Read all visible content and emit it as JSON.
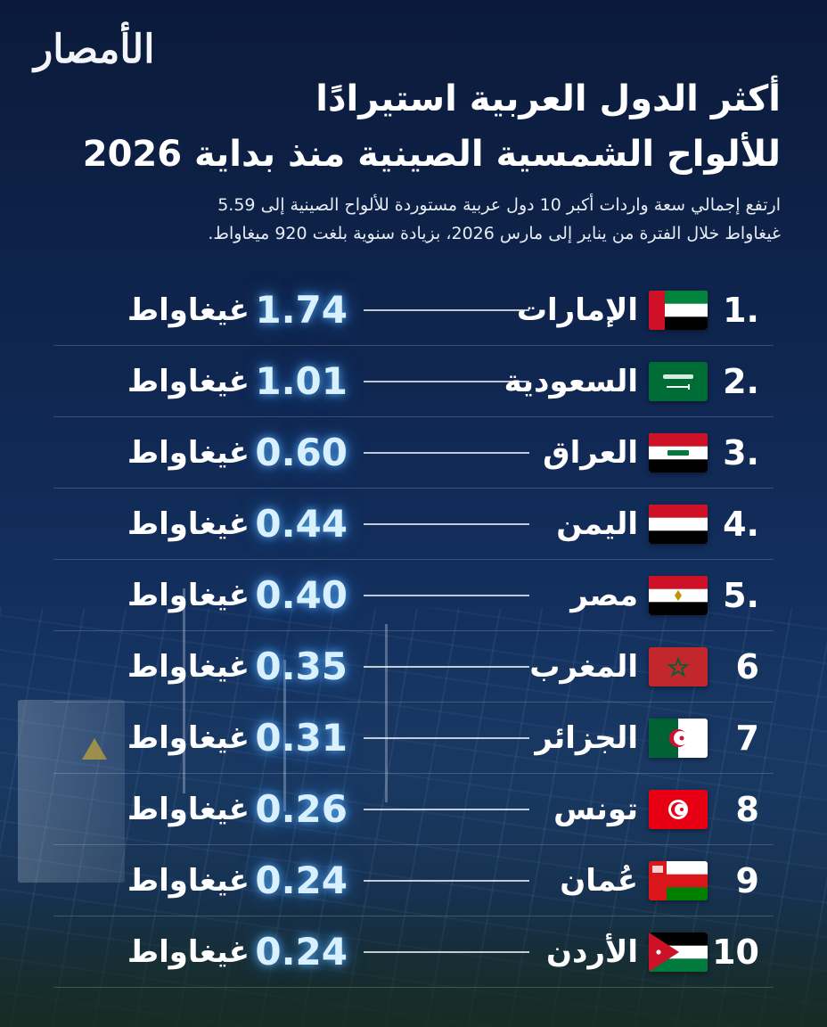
{
  "logo_text": "الأمصار",
  "title_line1": "أكثر الدول العربية استيرادًا",
  "title_line2": "للألواح الشمسية الصينية منذ بداية 2026",
  "subtitle_line1": "ارتفع إجمالي سعة واردات أكبر 10 دول عربية مستوردة للألواح الصينية إلى 5.59",
  "subtitle_line2": "غيغاواط خلال الفترة من يناير إلى مارس 2026، بزيادة سنوية بلغت 920 ميغاواط.",
  "chart_data": {
    "type": "table",
    "unit": "غيغاواط",
    "rows": [
      {
        "rank": "1.",
        "country": "الإمارات",
        "value": "1.74",
        "flag": "uae-flag"
      },
      {
        "rank": "2.",
        "country": "السعودية",
        "value": "1.01",
        "flag": "saudi-flag"
      },
      {
        "rank": "3.",
        "country": "العراق",
        "value": "0.60",
        "flag": "iraq-flag"
      },
      {
        "rank": "4.",
        "country": "اليمن",
        "value": "0.44",
        "flag": "yemen-flag"
      },
      {
        "rank": "5.",
        "country": "مصر",
        "value": "0.40",
        "flag": "egypt-flag"
      },
      {
        "rank": "6",
        "country": "المغرب",
        "value": "0.35",
        "flag": "morocco-flag"
      },
      {
        "rank": "7",
        "country": "الجزائر",
        "value": "0.31",
        "flag": "algeria-flag"
      },
      {
        "rank": "8",
        "country": "تونس",
        "value": "0.26",
        "flag": "tunisia-flag"
      },
      {
        "rank": "9",
        "country": "عُمان",
        "value": "0.24",
        "flag": "oman-flag"
      },
      {
        "rank": "10",
        "country": "الأردن",
        "value": "0.24",
        "flag": "jordan-flag"
      }
    ]
  },
  "colors": {
    "background": "#0f2650",
    "value_glow": "#5ab4ff",
    "text": "#ffffff"
  }
}
